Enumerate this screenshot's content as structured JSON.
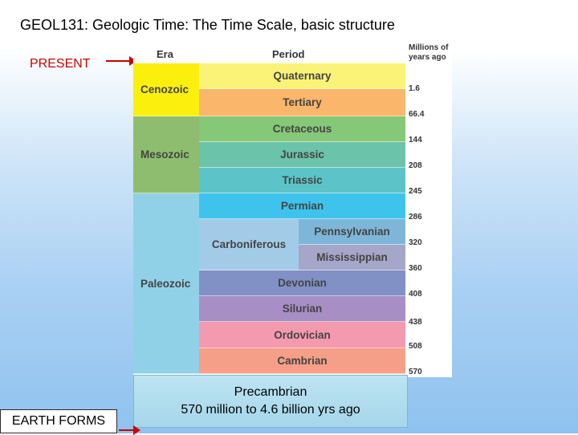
{
  "title": "GEOL131: Geologic Time: The Time Scale, basic structure",
  "present_label": "PRESENT",
  "earth_forms_label": "EARTH FORMS",
  "headers": {
    "era": "Era",
    "period": "Period",
    "mya": "Millions of years ago"
  },
  "eras": [
    {
      "name": "Cenozoic",
      "color": "#fbf00d"
    },
    {
      "name": "Mesozoic",
      "color": "#8fbd6f"
    },
    {
      "name": "Paleozoic",
      "color": "#91d1e8"
    }
  ],
  "periods": [
    {
      "name": "Quaternary",
      "color": "#faf377"
    },
    {
      "name": "Tertiary",
      "color": "#fab66a"
    },
    {
      "name": "Cretaceous",
      "color": "#85c878"
    },
    {
      "name": "Jurassic",
      "color": "#6bc3a9"
    },
    {
      "name": "Triassic",
      "color": "#5cc4c9"
    },
    {
      "name": "Permian",
      "color": "#3ec4ec"
    },
    {
      "name": "Carboniferous",
      "color": "#a2cbe8"
    },
    {
      "name": "Pennsylvanian",
      "color": "#7db6d8"
    },
    {
      "name": "Mississippian",
      "color": "#a4a7c8"
    },
    {
      "name": "Devonian",
      "color": "#8190c5"
    },
    {
      "name": "Silurian",
      "color": "#a78ec4"
    },
    {
      "name": "Ordovician",
      "color": "#f49aae"
    },
    {
      "name": "Cambrian",
      "color": "#f59f88"
    }
  ],
  "ticks": [
    "1.6",
    "66.4",
    "144",
    "208",
    "245",
    "286",
    "320",
    "360",
    "408",
    "438",
    "508",
    "570"
  ],
  "precambrian": {
    "name": "Precambrian",
    "range": "570 million to 4.6 billion yrs ago"
  }
}
